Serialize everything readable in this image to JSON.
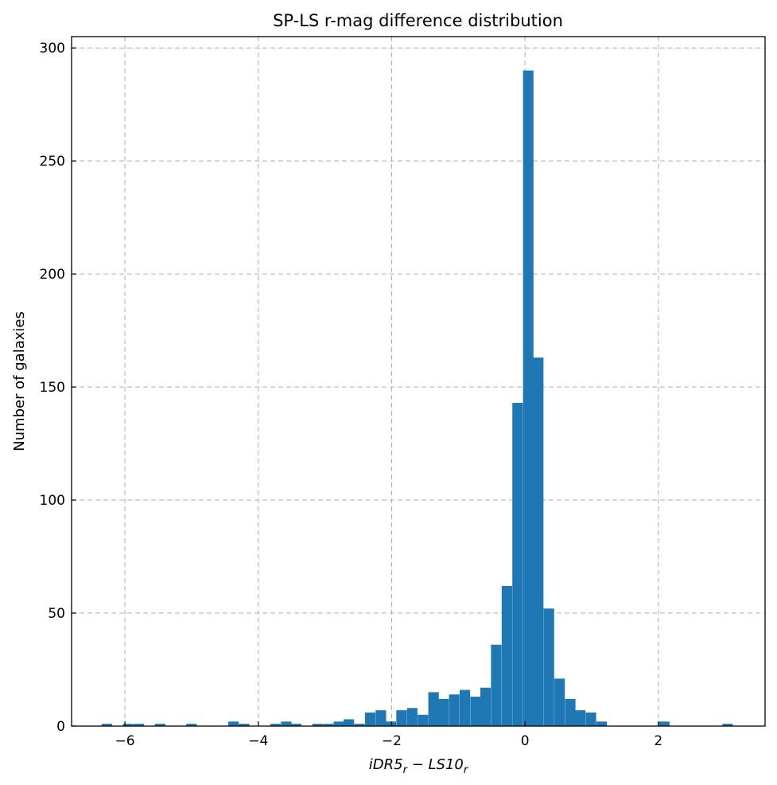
{
  "chart_data": {
    "type": "histogram",
    "title": "SP-LS r-mag difference distribution",
    "xlabel": {
      "main": "iDR5",
      "sub1": "r",
      "minus": " − ",
      "main2": "LS10",
      "sub2": "r"
    },
    "ylabel": "Number of galaxies",
    "xlim": [
      -6.8,
      3.6
    ],
    "ylim": [
      0,
      305
    ],
    "xticks": [
      -6,
      -4,
      -2,
      0,
      2
    ],
    "xtick_labels": [
      "−6",
      "−4",
      "−2",
      "0",
      "2"
    ],
    "yticks": [
      0,
      50,
      100,
      150,
      200,
      250,
      300
    ],
    "ytick_labels": [
      "0",
      "50",
      "100",
      "150",
      "200",
      "250",
      "300"
    ],
    "grid": true,
    "bar_color": "#1f77b4",
    "bin_width": 0.157,
    "bins": [
      {
        "x0": -6.35,
        "count": 1
      },
      {
        "x0": -6.03,
        "count": 1
      },
      {
        "x0": -5.87,
        "count": 1
      },
      {
        "x0": -5.55,
        "count": 1
      },
      {
        "x0": -5.08,
        "count": 1
      },
      {
        "x0": -4.45,
        "count": 2
      },
      {
        "x0": -4.29,
        "count": 1
      },
      {
        "x0": -3.82,
        "count": 1
      },
      {
        "x0": -3.66,
        "count": 2
      },
      {
        "x0": -3.51,
        "count": 1
      },
      {
        "x0": -3.19,
        "count": 1
      },
      {
        "x0": -3.03,
        "count": 1
      },
      {
        "x0": -2.87,
        "count": 2
      },
      {
        "x0": -2.72,
        "count": 3
      },
      {
        "x0": -2.56,
        "count": 1
      },
      {
        "x0": -2.4,
        "count": 6
      },
      {
        "x0": -2.24,
        "count": 7
      },
      {
        "x0": -2.09,
        "count": 2
      },
      {
        "x0": -1.93,
        "count": 7
      },
      {
        "x0": -1.77,
        "count": 8
      },
      {
        "x0": -1.61,
        "count": 5
      },
      {
        "x0": -1.45,
        "count": 15
      },
      {
        "x0": -1.3,
        "count": 12
      },
      {
        "x0": -1.14,
        "count": 14
      },
      {
        "x0": -0.98,
        "count": 16
      },
      {
        "x0": -0.82,
        "count": 13
      },
      {
        "x0": -0.67,
        "count": 17
      },
      {
        "x0": -0.51,
        "count": 36
      },
      {
        "x0": -0.35,
        "count": 62
      },
      {
        "x0": -0.19,
        "count": 143
      },
      {
        "x0": -0.03,
        "count": 290
      },
      {
        "x0": 0.12,
        "count": 163
      },
      {
        "x0": 0.28,
        "count": 52
      },
      {
        "x0": 0.44,
        "count": 21
      },
      {
        "x0": 0.6,
        "count": 12
      },
      {
        "x0": 0.75,
        "count": 7
      },
      {
        "x0": 0.91,
        "count": 6
      },
      {
        "x0": 1.07,
        "count": 2
      },
      {
        "x0": 2.01,
        "count": 2
      },
      {
        "x0": 2.96,
        "count": 1
      }
    ]
  }
}
